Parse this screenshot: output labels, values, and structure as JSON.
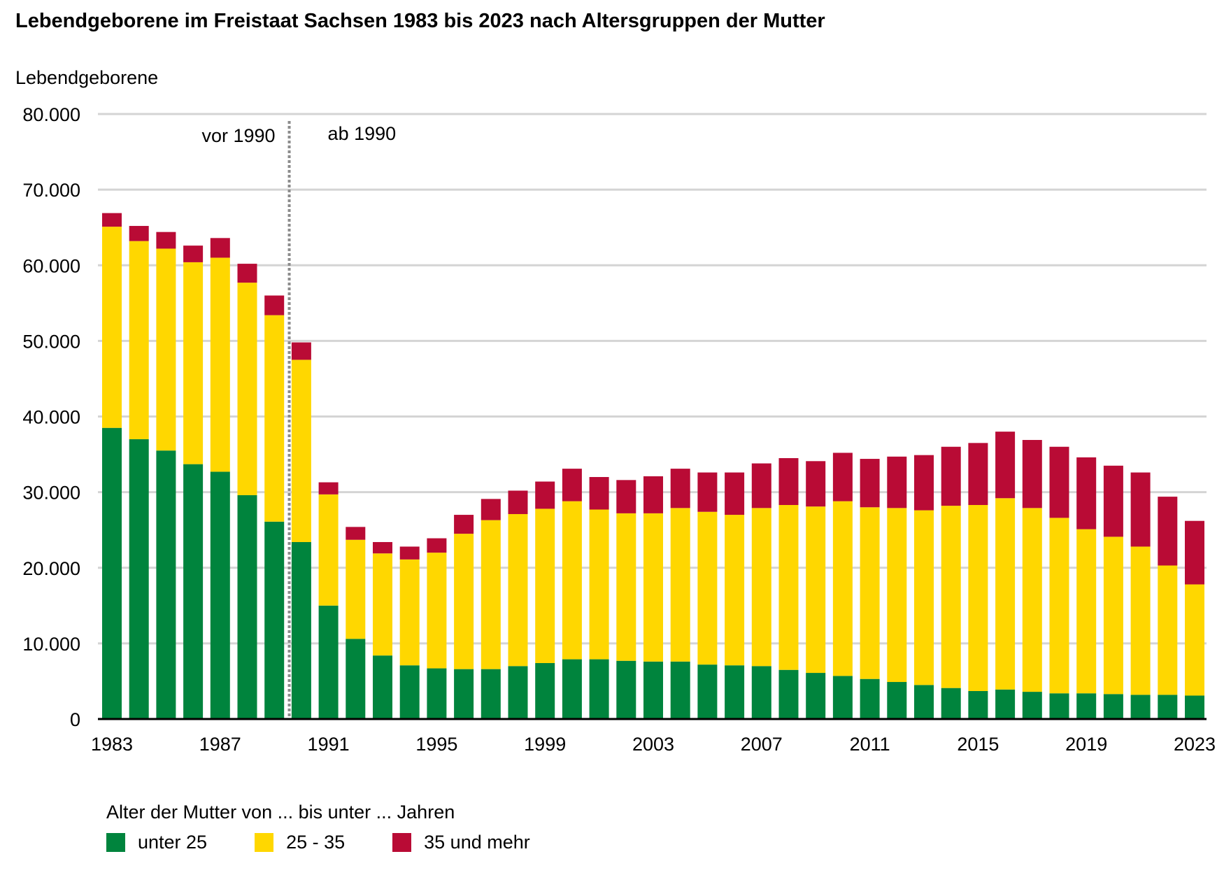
{
  "chart_data": {
    "type": "bar",
    "stacked": true,
    "title": "Lebendgeborene im Freistaat Sachsen 1983 bis 2023 nach Altersgruppen der Mutter",
    "ylabel": "Lebendgeborene",
    "xlabel": "",
    "ylim": [
      0,
      80000
    ],
    "yticks": [
      0,
      10000,
      20000,
      30000,
      40000,
      50000,
      60000,
      70000,
      80000
    ],
    "ytick_labels": [
      "0",
      "10.000",
      "20.000",
      "30.000",
      "40.000",
      "50.000",
      "60.000",
      "70.000",
      "80.000"
    ],
    "grid": true,
    "legend_position": "bottom",
    "legend_title": "Alter der Mutter von ... bis unter ... Jahren",
    "categories": [
      "1983",
      "1984",
      "1985",
      "1986",
      "1987",
      "1988",
      "1989",
      "1990",
      "1991",
      "1992",
      "1993",
      "1994",
      "1995",
      "1996",
      "1997",
      "1998",
      "1999",
      "2000",
      "2001",
      "2002",
      "2003",
      "2004",
      "2005",
      "2006",
      "2007",
      "2008",
      "2009",
      "2010",
      "2011",
      "2012",
      "2013",
      "2014",
      "2015",
      "2016",
      "2017",
      "2018",
      "2019",
      "2020",
      "2021",
      "2022",
      "2023"
    ],
    "xtick_labels": [
      "1983",
      "1987",
      "1991",
      "1995",
      "1999",
      "2003",
      "2007",
      "2011",
      "2015",
      "2019",
      "2023"
    ],
    "series": [
      {
        "name": "unter 25",
        "color": "#00843d",
        "values": [
          38500,
          37000,
          35500,
          33700,
          32700,
          29600,
          26100,
          23400,
          15000,
          10600,
          8400,
          7100,
          6700,
          6600,
          6600,
          7000,
          7400,
          7900,
          7900,
          7700,
          7600,
          7600,
          7200,
          7100,
          7000,
          6500,
          6100,
          5700,
          5300,
          4900,
          4500,
          4100,
          3700,
          3900,
          3600,
          3400,
          3400,
          3300,
          3200,
          3200,
          3100
        ]
      },
      {
        "name": "25 - 35",
        "color": "#ffd700",
        "values": [
          26600,
          26200,
          26700,
          26700,
          28300,
          28100,
          27300,
          24100,
          14700,
          13100,
          13500,
          14000,
          15300,
          17900,
          19700,
          20100,
          20400,
          20900,
          19800,
          19500,
          19600,
          20300,
          20200,
          19900,
          20900,
          21800,
          22000,
          23100,
          22700,
          23000,
          23100,
          24100,
          24600,
          25300,
          24300,
          23200,
          21700,
          20800,
          19600,
          17100,
          14700
        ]
      },
      {
        "name": "35 und mehr",
        "color": "#b90b35",
        "values": [
          1800,
          2000,
          2200,
          2200,
          2600,
          2500,
          2600,
          2300,
          1600,
          1700,
          1500,
          1700,
          1900,
          2500,
          2800,
          3100,
          3600,
          4300,
          4300,
          4400,
          4900,
          5200,
          5200,
          5600,
          5900,
          6200,
          6000,
          6400,
          6400,
          6800,
          7300,
          7800,
          8200,
          8800,
          9000,
          9400,
          9500,
          9400,
          9800,
          9100,
          8400
        ]
      }
    ],
    "divider": {
      "after_category": "1990",
      "label_left": "vor 1990",
      "label_right": "ab 1990"
    }
  }
}
